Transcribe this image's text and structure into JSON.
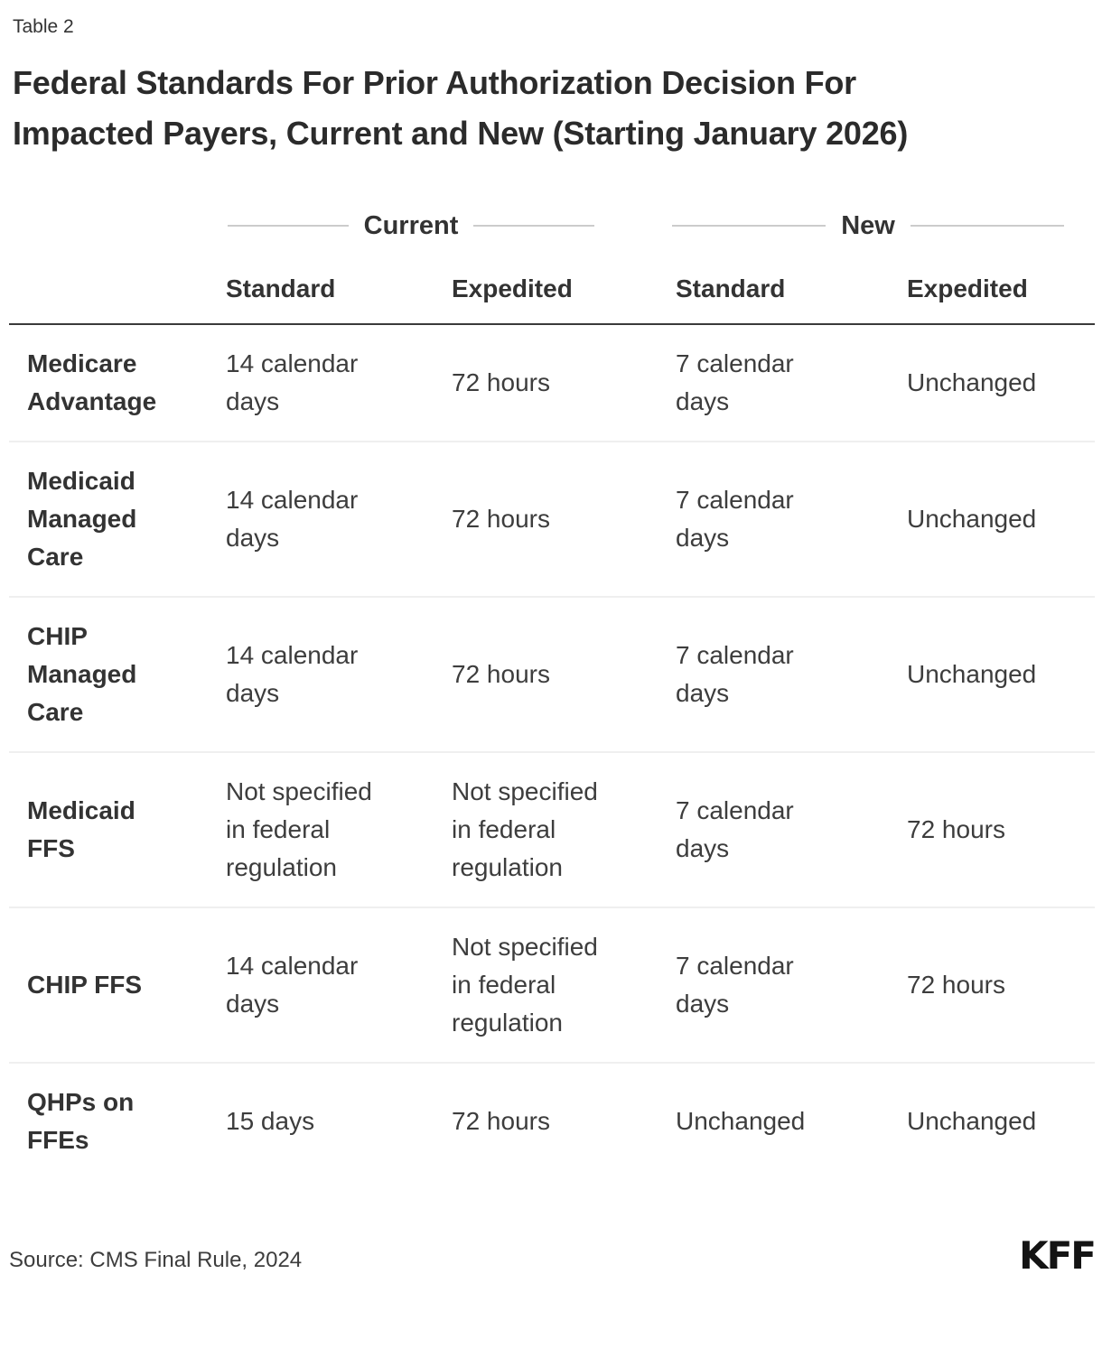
{
  "header": {
    "table_label": "Table 2",
    "title": "Federal Standards For Prior Authorization Decision For Impacted Payers, Current and New (Starting January 2026)"
  },
  "table": {
    "groups": [
      {
        "label": "Current"
      },
      {
        "label": "New"
      }
    ],
    "columns": [
      "Standard",
      "Expedited",
      "Standard",
      "Expedited"
    ],
    "rows": [
      {
        "label": "Medicare Advantage",
        "values": [
          "14 calendar days",
          "72 hours",
          "7 calendar days",
          "Unchanged"
        ]
      },
      {
        "label": "Medicaid Managed Care",
        "values": [
          "14 calendar days",
          "72 hours",
          "7 calendar days",
          "Unchanged"
        ]
      },
      {
        "label": "CHIP Managed Care",
        "values": [
          "14 calendar days",
          "72 hours",
          "7 calendar days",
          "Unchanged"
        ]
      },
      {
        "label": "Medicaid FFS",
        "values": [
          "Not specified in federal regulation",
          "Not specified in federal regulation",
          "7 calendar days",
          "72 hours"
        ]
      },
      {
        "label": "CHIP FFS",
        "values": [
          "14 calendar days",
          "Not specified in federal regulation",
          "7 calendar days",
          "72 hours"
        ]
      },
      {
        "label": "QHPs on FFEs",
        "values": [
          "15 days",
          "72 hours",
          "Unchanged",
          "Unchanged"
        ]
      }
    ]
  },
  "footer": {
    "source": "Source: CMS Final Rule, 2024",
    "logo_text": "KFF"
  },
  "colors": {
    "title_text": "#2b2b2b",
    "body_text": "#3d3d3d",
    "label_text": "#333333",
    "header_rule": "#3a3a3a",
    "row_divider": "#efefef",
    "group_line": "#cccccc",
    "logo_text": "#141414",
    "background": "#ffffff"
  }
}
